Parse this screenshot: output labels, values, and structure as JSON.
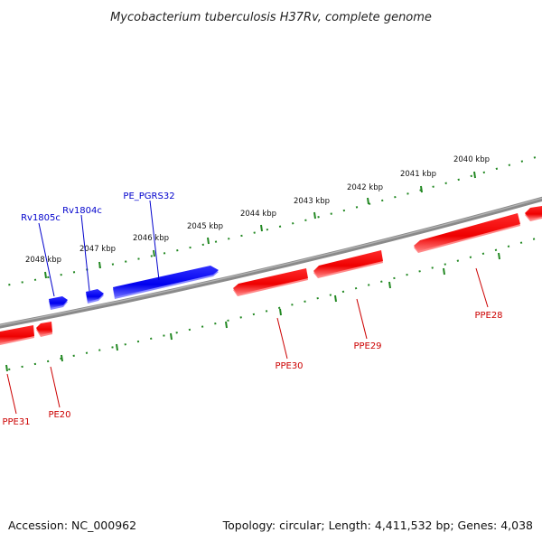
{
  "title": "Mycobacterium tuberculosis H37Rv, complete genome",
  "footer": {
    "accession": "Accession: NC_000962",
    "summary": "Topology: circular; Length: 4,411,532 bp; Genes: 4,038"
  },
  "colors": {
    "forward_gene": "#0000ee",
    "reverse_gene": "#ee0000",
    "backbone": "#808080",
    "ticks": "#228822"
  },
  "ticks": [
    "2040 kbp",
    "2041 kbp",
    "2042 kbp",
    "2043 kbp",
    "2044 kbp",
    "2045 kbp",
    "2046 kbp",
    "2047 kbp",
    "2048 kbp"
  ],
  "genes": {
    "forward": [
      {
        "name": "Rv1805c",
        "strand": "forward",
        "label_color": "#0000cc"
      },
      {
        "name": "Rv1804c",
        "strand": "forward",
        "label_color": "#0000cc"
      },
      {
        "name": "PE_PGRS32",
        "strand": "forward",
        "label_color": "#0000cc"
      }
    ],
    "reverse": [
      {
        "name": "PPE28",
        "strand": "reverse",
        "label_color": "#cc0000"
      },
      {
        "name": "PPE29",
        "strand": "reverse",
        "label_color": "#cc0000"
      },
      {
        "name": "PPE30",
        "strand": "reverse",
        "label_color": "#cc0000"
      },
      {
        "name": "PE20",
        "strand": "reverse",
        "label_color": "#cc0000"
      },
      {
        "name": "PPE31",
        "strand": "reverse",
        "label_color": "#cc0000"
      }
    ]
  }
}
